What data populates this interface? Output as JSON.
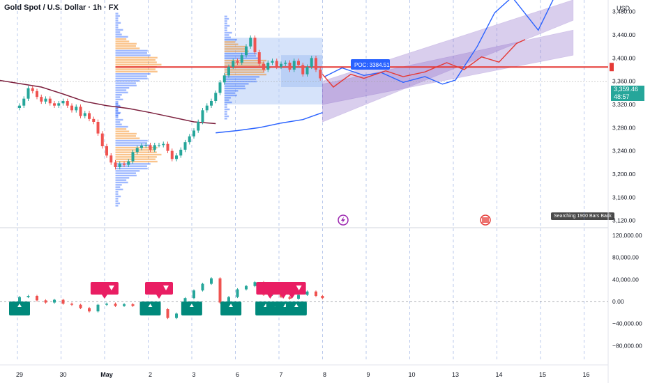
{
  "header": {
    "title": "Gold Spot / U.S. Dollar · 1h · FX",
    "currency": "USD",
    "last_price": "3,359.46",
    "countdown": "48:57",
    "poc_label": "POC: 3384.51",
    "search_note": "Searching 1900 Bars Back"
  },
  "colors": {
    "bull": "#26a69a",
    "bear": "#ef5350",
    "accent_blue": "#2962ff",
    "ma_long": "#7b1e3c",
    "poc_line": "#e53935",
    "channel_fill": "#9575cd",
    "profile_blue": "#2962ff",
    "profile_orange": "#f57c00",
    "buy_label": "#00897b",
    "sell_label": "#e91e63"
  },
  "chart_data": [
    {
      "type": "line",
      "subtype": "candlestick price chart",
      "ylabel": "USD",
      "y_ticks": [
        "3,480.00",
        "3,440.00",
        "3,400.00",
        "3,360.00",
        "3,320.00",
        "3,280.00",
        "3,240.00",
        "3,200.00",
        "3,160.00",
        "3,120.00"
      ],
      "y_tick_values": [
        3480,
        3440,
        3400,
        3360,
        3320,
        3280,
        3240,
        3200,
        3160,
        3120
      ],
      "ylim": [
        3110,
        3500
      ],
      "x_tick_labels": [
        "29",
        "30",
        "May",
        "2",
        "3",
        "6",
        "7",
        "8",
        "9",
        "10",
        "13",
        "14",
        "15",
        "16"
      ],
      "x_tick_index": [
        0,
        1,
        2,
        3,
        4,
        5,
        6,
        7,
        8,
        9,
        10,
        11,
        12,
        13
      ],
      "xlim": [
        -0.2,
        13.9
      ],
      "close_series": [
        [
          0.0,
          3318
        ],
        [
          0.1,
          3330
        ],
        [
          0.2,
          3348
        ],
        [
          0.3,
          3343
        ],
        [
          0.4,
          3333
        ],
        [
          0.5,
          3325
        ],
        [
          0.6,
          3330
        ],
        [
          0.7,
          3322
        ],
        [
          0.8,
          3318
        ],
        [
          0.9,
          3322
        ],
        [
          1.0,
          3326
        ],
        [
          1.1,
          3318
        ],
        [
          1.2,
          3310
        ],
        [
          1.3,
          3316
        ],
        [
          1.4,
          3300
        ],
        [
          1.5,
          3305
        ],
        [
          1.6,
          3295
        ],
        [
          1.7,
          3290
        ],
        [
          1.8,
          3270
        ],
        [
          1.9,
          3248
        ],
        [
          2.0,
          3232
        ],
        [
          2.1,
          3220
        ],
        [
          2.2,
          3212
        ],
        [
          2.3,
          3218
        ],
        [
          2.4,
          3216
        ],
        [
          2.5,
          3222
        ],
        [
          2.6,
          3238
        ],
        [
          2.7,
          3245
        ],
        [
          2.8,
          3249
        ],
        [
          2.9,
          3250
        ],
        [
          3.0,
          3242
        ],
        [
          3.1,
          3250
        ],
        [
          3.2,
          3250
        ],
        [
          3.3,
          3252
        ],
        [
          3.4,
          3240
        ],
        [
          3.5,
          3226
        ],
        [
          3.6,
          3232
        ],
        [
          3.7,
          3242
        ],
        [
          3.8,
          3255
        ],
        [
          3.9,
          3265
        ],
        [
          4.0,
          3275
        ],
        [
          4.1,
          3290
        ],
        [
          4.2,
          3310
        ],
        [
          4.3,
          3318
        ],
        [
          4.4,
          3326
        ],
        [
          4.5,
          3340
        ],
        [
          4.6,
          3358
        ],
        [
          4.7,
          3370
        ],
        [
          4.8,
          3385
        ],
        [
          4.9,
          3395
        ],
        [
          5.0,
          3392
        ],
        [
          5.1,
          3405
        ],
        [
          5.2,
          3420
        ],
        [
          5.3,
          3435
        ],
        [
          5.4,
          3410
        ],
        [
          5.5,
          3390
        ],
        [
          5.6,
          3380
        ],
        [
          5.7,
          3392
        ],
        [
          5.8,
          3395
        ],
        [
          5.9,
          3385
        ],
        [
          6.0,
          3390
        ],
        [
          6.1,
          3392
        ],
        [
          6.2,
          3380
        ],
        [
          6.3,
          3395
        ],
        [
          6.4,
          3388
        ],
        [
          6.5,
          3372
        ],
        [
          6.6,
          3385
        ],
        [
          6.7,
          3400
        ],
        [
          6.8,
          3380
        ],
        [
          6.9,
          3365
        ]
      ],
      "moving_average_long": [
        [
          -0.5,
          3362
        ],
        [
          0.0,
          3356
        ],
        [
          0.5,
          3350
        ],
        [
          1.0,
          3338
        ],
        [
          1.5,
          3325
        ],
        [
          2.0,
          3318
        ],
        [
          2.5,
          3313
        ],
        [
          3.0,
          3306
        ],
        [
          3.5,
          3298
        ],
        [
          4.0,
          3290
        ],
        [
          4.5,
          3287
        ]
      ],
      "moving_average_short": [
        [
          4.5,
          3271
        ],
        [
          5.0,
          3275
        ],
        [
          5.5,
          3280
        ],
        [
          6.0,
          3288
        ],
        [
          6.5,
          3294
        ],
        [
          6.95,
          3306
        ]
      ],
      "poc_level": 3384.51,
      "last_price": 3359.46,
      "projection_blue": [
        [
          7.0,
          3368
        ],
        [
          7.4,
          3383
        ],
        [
          7.9,
          3370
        ],
        [
          8.3,
          3375
        ],
        [
          8.8,
          3358
        ],
        [
          9.3,
          3368
        ],
        [
          9.7,
          3355
        ],
        [
          10.0,
          3362
        ],
        [
          10.5,
          3420
        ],
        [
          10.9,
          3478
        ],
        [
          11.3,
          3505
        ],
        [
          11.9,
          3448
        ],
        [
          12.4,
          3525
        ]
      ],
      "projection_red": [
        [
          6.95,
          3372
        ],
        [
          7.2,
          3350
        ],
        [
          7.6,
          3372
        ],
        [
          7.9,
          3365
        ],
        [
          8.4,
          3378
        ],
        [
          8.8,
          3368
        ],
        [
          9.3,
          3376
        ],
        [
          9.8,
          3392
        ],
        [
          10.2,
          3380
        ],
        [
          10.6,
          3402
        ],
        [
          11.0,
          3393
        ],
        [
          11.4,
          3425
        ],
        [
          11.6,
          3432
        ]
      ],
      "channel_upper": {
        "x0": 6.95,
        "x1": 12.7,
        "top_start": 3360,
        "top_end": 3500,
        "bottom_start": 3290,
        "bottom_end": 3465
      },
      "channel_lower": {
        "x0": 6.95,
        "x1": 12.7,
        "top_start": 3355,
        "top_end": 3448,
        "bottom_start": 3320,
        "bottom_end": 3405
      },
      "value_area_box": {
        "x0": 4.7,
        "x1": 6.95,
        "y_low": 3320,
        "y_high": 3435
      }
    },
    {
      "type": "line",
      "subtype": "oscillator candlestick panel",
      "y_ticks": [
        "120,000.00",
        "80,000.00",
        "40,000.00",
        "0.00",
        "−40,000.00",
        "−80,000.00"
      ],
      "y_tick_values": [
        120000,
        80000,
        40000,
        0,
        -40000,
        -80000
      ],
      "ylim": [
        -110000,
        130000
      ],
      "series": [
        [
          0.0,
          8000
        ],
        [
          0.2,
          10000
        ],
        [
          0.4,
          2000
        ],
        [
          0.6,
          -2000
        ],
        [
          0.8,
          3000
        ],
        [
          1.0,
          -4000
        ],
        [
          1.2,
          -6000
        ],
        [
          1.4,
          -12000
        ],
        [
          1.6,
          -18000
        ],
        [
          1.8,
          -6000
        ],
        [
          2.0,
          -4000
        ],
        [
          2.2,
          -8000
        ],
        [
          2.4,
          -5000
        ],
        [
          2.6,
          -8000
        ],
        [
          2.8,
          -12000
        ],
        [
          3.0,
          -4000
        ],
        [
          3.2,
          -14000
        ],
        [
          3.4,
          -30000
        ],
        [
          3.6,
          -22000
        ],
        [
          3.8,
          6000
        ],
        [
          4.0,
          20000
        ],
        [
          4.2,
          32000
        ],
        [
          4.4,
          42000
        ],
        [
          4.6,
          -2000
        ],
        [
          4.8,
          8000
        ],
        [
          5.0,
          22000
        ],
        [
          5.2,
          28000
        ],
        [
          5.4,
          35000
        ],
        [
          5.6,
          12000
        ],
        [
          5.8,
          16000
        ],
        [
          6.0,
          8000
        ],
        [
          6.2,
          5000
        ],
        [
          6.4,
          12000
        ],
        [
          6.6,
          18000
        ],
        [
          6.8,
          10000
        ],
        [
          6.95,
          6000
        ]
      ],
      "signals_sell": [
        1.95,
        3.2,
        5.75,
        6.05,
        6.25
      ],
      "signals_buy": [
        0.0,
        3.0,
        3.95,
        4.85,
        5.65,
        5.9,
        6.1,
        6.35
      ]
    }
  ]
}
